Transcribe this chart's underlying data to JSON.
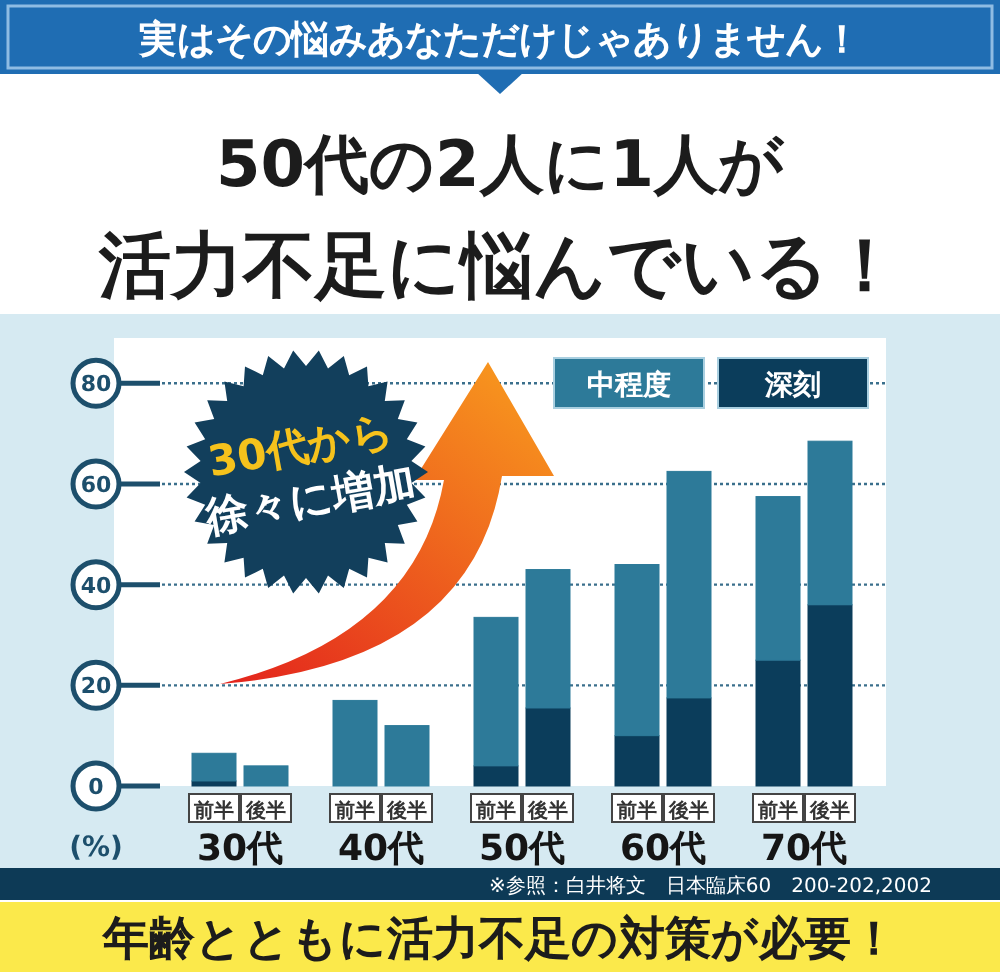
{
  "chart_data": {
    "type": "bar",
    "title": "50代の2人に1人が",
    "subtitle": "活力不足に悩んでいる！",
    "ylabel": "(%)",
    "categories": [
      "前半",
      "後半",
      "前半",
      "後半",
      "前半",
      "後半",
      "前半",
      "後半",
      "前半",
      "後半"
    ],
    "series": [
      {
        "name": "深刻",
        "color": "#0b3d5b",
        "values": [
          1,
          null,
          null,
          null,
          4,
          15.5,
          10,
          17.5,
          25,
          36
        ]
      },
      {
        "name": "中程度",
        "color": "#2d7a99",
        "values": [
          5.5,
          4,
          17,
          12,
          29.5,
          27.5,
          34,
          45,
          32.5,
          32.5
        ]
      }
    ],
    "stacked": true,
    "ylim": [
      0,
      89
    ],
    "yticks": [
      0,
      20,
      40,
      60,
      80
    ],
    "grid": "y",
    "legend": "top right",
    "annotations": [
      "30代",
      "40代",
      "50代",
      "60代",
      "70代",
      "実はその悩みあなただけじゃありません！",
      "30代から",
      "徐々に増加",
      "※参照：白井将文　日本臨床60　200-202,2002",
      "年齢とともに活力不足の対策が必要！"
    ]
  }
}
